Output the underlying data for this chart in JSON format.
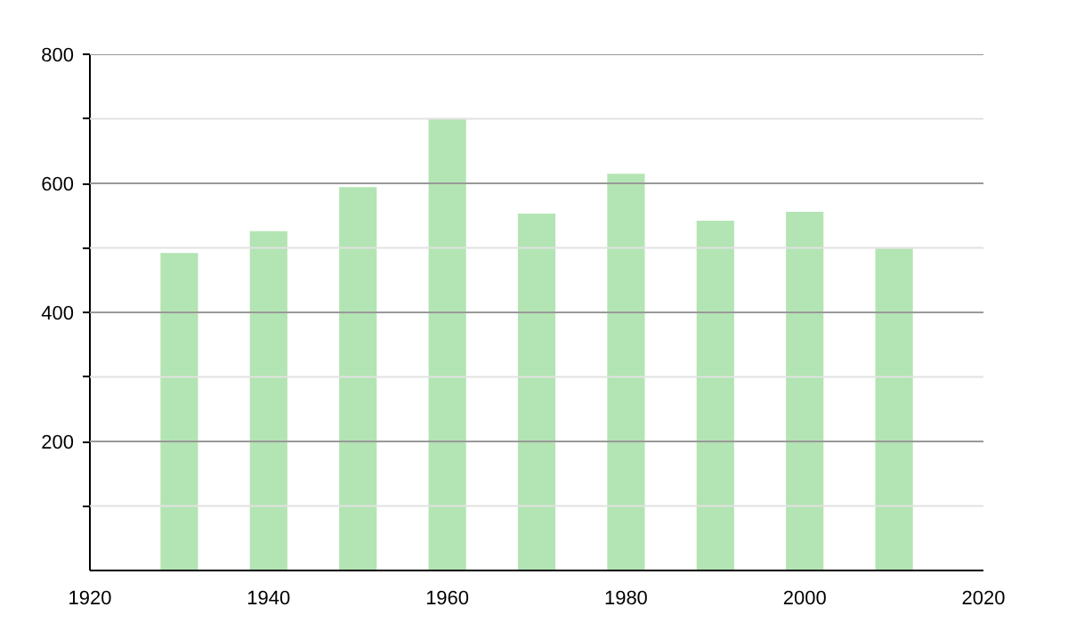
{
  "chart_data": {
    "type": "bar",
    "x": [
      1930,
      1940,
      1950,
      1960,
      1970,
      1980,
      1990,
      2000,
      2010
    ],
    "values": [
      492,
      526,
      594,
      701,
      553,
      615,
      542,
      556,
      499
    ],
    "color": "#b3e4b3",
    "xlim": [
      1920,
      2020
    ],
    "xticks": [
      1920,
      1940,
      1960,
      1980,
      2000,
      2020
    ],
    "ylim": [
      0,
      800
    ],
    "yticks": [
      {
        "value": 100,
        "label": null
      },
      200,
      {
        "value": 300,
        "label": null
      },
      400,
      {
        "value": 500,
        "label": null
      },
      600,
      {
        "value": 700,
        "label": null
      },
      800
    ],
    "grid": "y"
  }
}
